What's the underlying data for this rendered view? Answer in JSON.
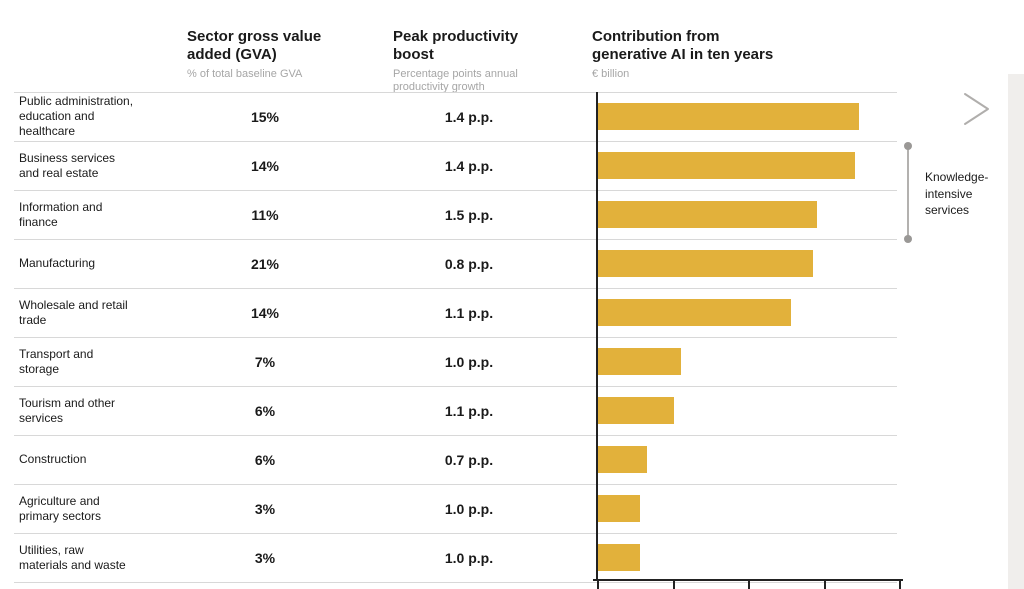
{
  "columns": [
    {
      "title": "Sector gross value\nadded (GVA)",
      "subtitle": "% of total baseline GVA"
    },
    {
      "title": "Peak productivity\nboost",
      "subtitle": "Percentage points annual\nproductivity growth"
    },
    {
      "title": "Contribution from\ngenerative AI in ten years",
      "subtitle": "€ billion"
    }
  ],
  "rows": [
    {
      "sector": "Public administration,\neducation and\nhealthcare",
      "gva": "15%",
      "boost": "1.4 p.p.",
      "contribution": 69
    },
    {
      "sector": "Business services\nand real estate",
      "gva": "14%",
      "boost": "1.4 p.p.",
      "contribution": 68
    },
    {
      "sector": "Information and\nfinance",
      "gva": "11%",
      "boost": "1.5 p.p.",
      "contribution": 58
    },
    {
      "sector": "Manufacturing",
      "gva": "21%",
      "boost": "0.8 p.p.",
      "contribution": 57
    },
    {
      "sector": "Wholesale and retail\ntrade",
      "gva": "14%",
      "boost": "1.1 p.p.",
      "contribution": 51
    },
    {
      "sector": "Transport and\nstorage",
      "gva": "7%",
      "boost": "1.0 p.p.",
      "contribution": 22
    },
    {
      "sector": "Tourism and other\nservices",
      "gva": "6%",
      "boost": "1.1 p.p.",
      "contribution": 20
    },
    {
      "sector": "Construction",
      "gva": "6%",
      "boost": "0.7 p.p.",
      "contribution": 13
    },
    {
      "sector": "Agriculture and\nprimary sectors",
      "gva": "3%",
      "boost": "1.0 p.p.",
      "contribution": 11
    },
    {
      "sector": "Utilities, raw\nmaterials and waste",
      "gva": "3%",
      "boost": "1.0 p.p.",
      "contribution": 11
    }
  ],
  "annotation": {
    "label": "Knowledge-\nintensive\nservices",
    "label_plain": "Knowledge-intensive services",
    "rows_spanned": [
      2,
      3
    ]
  },
  "chart_data": {
    "type": "bar",
    "orientation": "horizontal",
    "title": "Contribution from generative AI in ten years",
    "xlabel": "€ billion",
    "categories": [
      "Public administration, education and healthcare",
      "Business services and real estate",
      "Information and finance",
      "Manufacturing",
      "Wholesale and retail trade",
      "Transport and storage",
      "Tourism and other services",
      "Construction",
      "Agriculture and primary sectors",
      "Utilities, raw materials and waste"
    ],
    "series": [
      {
        "name": "Sector gross value added (GVA), % of total baseline GVA",
        "unit": "%",
        "values": [
          15,
          14,
          11,
          21,
          14,
          7,
          6,
          6,
          3,
          3
        ]
      },
      {
        "name": "Peak productivity boost",
        "unit": "p.p.",
        "values": [
          1.4,
          1.4,
          1.5,
          0.8,
          1.1,
          1.0,
          1.1,
          0.7,
          1.0,
          1.0
        ]
      },
      {
        "name": "Contribution from generative AI in ten years",
        "unit": "€ billion",
        "values": [
          69,
          68,
          58,
          57,
          51,
          22,
          20,
          13,
          11,
          11
        ],
        "note": "values estimated from bar lengths; axis tick labels cropped at image edge"
      }
    ],
    "xlim": [
      0,
      80
    ],
    "xticks_estimated": [
      0,
      20,
      40,
      60,
      80
    ],
    "grid": "horizontal row separators",
    "legend": "none",
    "annotation": "Knowledge-intensive services bracket spanning rows 2-3"
  },
  "colors": {
    "bar": "#E2B13B",
    "axis": "#222222",
    "gridline": "#d8d8d8",
    "subtitle_gray": "#a6a6a6",
    "annotation_gray": "#9a9896",
    "side_strip": "#f0eeec"
  }
}
